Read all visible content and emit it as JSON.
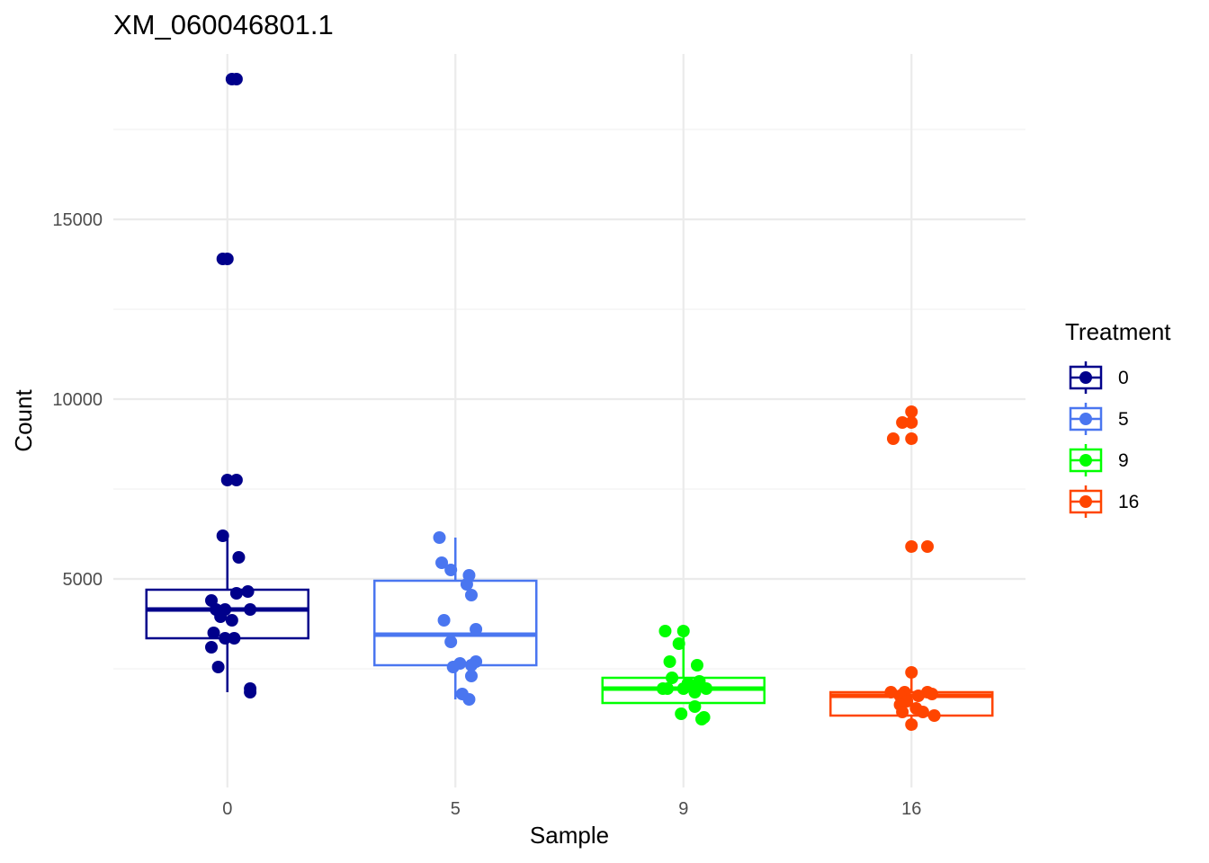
{
  "chart_data": {
    "type": "boxplot",
    "title": "XM_060046801.1",
    "xlabel": "Sample",
    "ylabel": "Count",
    "ylim": [
      -800,
      19600
    ],
    "y_major_ticks": [
      5000,
      10000,
      15000
    ],
    "y_minor_ticks": [
      2500,
      7500,
      12500,
      17500
    ],
    "categories": [
      "0",
      "5",
      "9",
      "16"
    ],
    "legend": {
      "title": "Treatment",
      "position": "right",
      "entries": [
        {
          "label": "0",
          "color": "#00008B"
        },
        {
          "label": "5",
          "color": "#4A76F0"
        },
        {
          "label": "9",
          "color": "#00FF00"
        },
        {
          "label": "16",
          "color": "#FF4500"
        }
      ]
    },
    "series": [
      {
        "name": "0",
        "color": "#00008B",
        "box": {
          "q1": 3350,
          "median": 4150,
          "q3": 4700,
          "whisker_low": 1850,
          "whisker_high": 6200
        },
        "points": [
          {
            "jitter": 0.02,
            "y": 18900
          },
          {
            "jitter": 0.04,
            "y": 18900
          },
          {
            "jitter": -0.02,
            "y": 13900
          },
          {
            "jitter": 0.0,
            "y": 13900
          },
          {
            "jitter": 0.0,
            "y": 7750
          },
          {
            "jitter": 0.04,
            "y": 7750
          },
          {
            "jitter": -0.02,
            "y": 6200
          },
          {
            "jitter": 0.05,
            "y": 5600
          },
          {
            "jitter": 0.09,
            "y": 4650
          },
          {
            "jitter": 0.04,
            "y": 4600
          },
          {
            "jitter": -0.07,
            "y": 4400
          },
          {
            "jitter": -0.05,
            "y": 4150
          },
          {
            "jitter": -0.01,
            "y": 4150
          },
          {
            "jitter": 0.1,
            "y": 4150
          },
          {
            "jitter": -0.03,
            "y": 3950
          },
          {
            "jitter": 0.02,
            "y": 3850
          },
          {
            "jitter": -0.06,
            "y": 3500
          },
          {
            "jitter": -0.01,
            "y": 3350
          },
          {
            "jitter": 0.03,
            "y": 3350
          },
          {
            "jitter": -0.07,
            "y": 3100
          },
          {
            "jitter": -0.04,
            "y": 2550
          },
          {
            "jitter": 0.1,
            "y": 1950
          },
          {
            "jitter": 0.1,
            "y": 1850
          }
        ]
      },
      {
        "name": "5",
        "color": "#4A76F0",
        "box": {
          "q1": 2600,
          "median": 3450,
          "q3": 4950,
          "whisker_low": 1650,
          "whisker_high": 6150
        },
        "points": [
          {
            "jitter": -0.07,
            "y": 6150
          },
          {
            "jitter": -0.06,
            "y": 5450
          },
          {
            "jitter": -0.02,
            "y": 5250
          },
          {
            "jitter": 0.06,
            "y": 5100
          },
          {
            "jitter": 0.05,
            "y": 4850
          },
          {
            "jitter": 0.07,
            "y": 4550
          },
          {
            "jitter": -0.05,
            "y": 3850
          },
          {
            "jitter": 0.09,
            "y": 3600
          },
          {
            "jitter": -0.02,
            "y": 3250
          },
          {
            "jitter": 0.09,
            "y": 2700
          },
          {
            "jitter": 0.02,
            "y": 2650
          },
          {
            "jitter": 0.07,
            "y": 2600
          },
          {
            "jitter": -0.01,
            "y": 2550
          },
          {
            "jitter": 0.07,
            "y": 2300
          },
          {
            "jitter": 0.03,
            "y": 1800
          },
          {
            "jitter": 0.06,
            "y": 1650
          }
        ]
      },
      {
        "name": "9",
        "color": "#00FF00",
        "box": {
          "q1": 1550,
          "median": 1950,
          "q3": 2250,
          "whisker_low": 1550,
          "whisker_high": 3550
        },
        "points": [
          {
            "jitter": -0.08,
            "y": 3550
          },
          {
            "jitter": 0.0,
            "y": 3550
          },
          {
            "jitter": -0.02,
            "y": 3200
          },
          {
            "jitter": -0.06,
            "y": 2700
          },
          {
            "jitter": 0.06,
            "y": 2600
          },
          {
            "jitter": -0.05,
            "y": 2250
          },
          {
            "jitter": 0.07,
            "y": 2150
          },
          {
            "jitter": 0.02,
            "y": 2100
          },
          {
            "jitter": 0.05,
            "y": 2000
          },
          {
            "jitter": -0.09,
            "y": 1950
          },
          {
            "jitter": -0.07,
            "y": 1950
          },
          {
            "jitter": 0.0,
            "y": 1950
          },
          {
            "jitter": 0.1,
            "y": 1950
          },
          {
            "jitter": 0.05,
            "y": 1850
          },
          {
            "jitter": 0.05,
            "y": 1450
          },
          {
            "jitter": -0.01,
            "y": 1250
          },
          {
            "jitter": 0.09,
            "y": 1150
          },
          {
            "jitter": 0.08,
            "y": 1100
          }
        ]
      },
      {
        "name": "16",
        "color": "#FF4500",
        "box": {
          "q1": 1200,
          "median": 1750,
          "q3": 1850,
          "whisker_low": 950,
          "whisker_high": 2400
        },
        "points": [
          {
            "jitter": 0.0,
            "y": 9650
          },
          {
            "jitter": -0.04,
            "y": 9350
          },
          {
            "jitter": 0.0,
            "y": 9350
          },
          {
            "jitter": -0.08,
            "y": 8900
          },
          {
            "jitter": 0.0,
            "y": 8900
          },
          {
            "jitter": 0.0,
            "y": 5900
          },
          {
            "jitter": 0.07,
            "y": 5900
          },
          {
            "jitter": 0.0,
            "y": 2400
          },
          {
            "jitter": -0.09,
            "y": 1850
          },
          {
            "jitter": -0.03,
            "y": 1850
          },
          {
            "jitter": 0.07,
            "y": 1850
          },
          {
            "jitter": 0.09,
            "y": 1800
          },
          {
            "jitter": -0.05,
            "y": 1750
          },
          {
            "jitter": 0.03,
            "y": 1750
          },
          {
            "jitter": -0.02,
            "y": 1600
          },
          {
            "jitter": -0.05,
            "y": 1500
          },
          {
            "jitter": 0.02,
            "y": 1400
          },
          {
            "jitter": -0.04,
            "y": 1300
          },
          {
            "jitter": 0.05,
            "y": 1300
          },
          {
            "jitter": 0.1,
            "y": 1200
          },
          {
            "jitter": 0.0,
            "y": 950
          }
        ]
      }
    ]
  }
}
